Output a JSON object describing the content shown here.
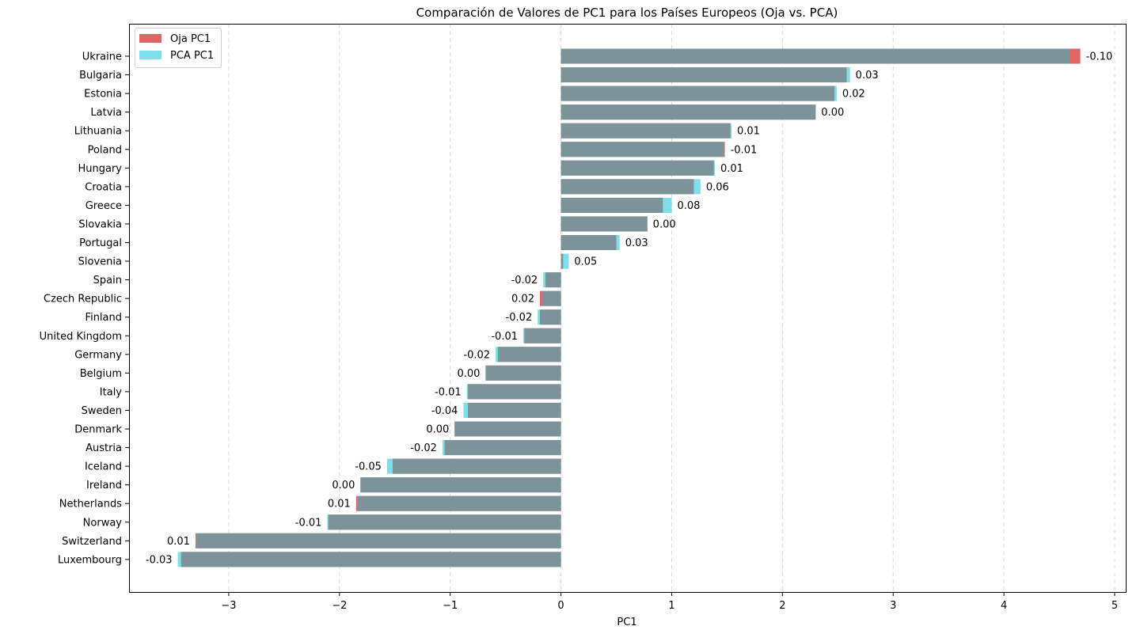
{
  "chart_data": {
    "type": "bar",
    "orientation": "horizontal",
    "title": "Comparación de Valores de PC1 para los Países Europeos (Oja vs. PCA)",
    "xlabel": "PC1",
    "ylabel": "",
    "xlim": [
      -3.9,
      5.1
    ],
    "xticks": [
      -3,
      -2,
      -1,
      0,
      1,
      2,
      3,
      4,
      5
    ],
    "xtick_labels": [
      "−3",
      "−2",
      "−1",
      "0",
      "1",
      "2",
      "3",
      "4",
      "5"
    ],
    "grid": "x-dashed",
    "legend_position": "top-left",
    "legend": [
      {
        "key": "oja",
        "label": "Oja PC1",
        "color": "#e06666"
      },
      {
        "key": "pca",
        "label": "PCA PC1",
        "color": "#80deea"
      }
    ],
    "overlap_color": "#7b9399",
    "categories": [
      "Ukraine",
      "Bulgaria",
      "Estonia",
      "Latvia",
      "Lithuania",
      "Poland",
      "Hungary",
      "Croatia",
      "Greece",
      "Slovakia",
      "Portugal",
      "Slovenia",
      "Spain",
      "Czech Republic",
      "Finland",
      "United Kingdom",
      "Germany",
      "Belgium",
      "Italy",
      "Sweden",
      "Denmark",
      "Austria",
      "Iceland",
      "Ireland",
      "Netherlands",
      "Norway",
      "Switzerland",
      "Luxembourg"
    ],
    "series": [
      {
        "name": "Oja PC1",
        "values": [
          4.69,
          2.58,
          2.47,
          2.3,
          1.53,
          1.48,
          1.38,
          1.2,
          0.92,
          0.78,
          0.5,
          0.02,
          -0.14,
          -0.19,
          -0.19,
          -0.33,
          -0.57,
          -0.68,
          -0.84,
          -0.84,
          -0.96,
          -1.05,
          -1.52,
          -1.81,
          -1.85,
          -2.1,
          -3.3,
          -3.43
        ]
      },
      {
        "name": "PCA PC1",
        "values": [
          4.59,
          2.61,
          2.49,
          2.3,
          1.54,
          1.47,
          1.39,
          1.26,
          1.0,
          0.78,
          0.53,
          0.07,
          -0.16,
          -0.17,
          -0.21,
          -0.34,
          -0.59,
          -0.68,
          -0.85,
          -0.88,
          -0.96,
          -1.07,
          -1.57,
          -1.81,
          -1.84,
          -2.11,
          -3.29,
          -3.46
        ]
      }
    ],
    "difference_labels": [
      "-0.10",
      "0.03",
      "0.02",
      "0.00",
      "0.01",
      "-0.01",
      "0.01",
      "0.06",
      "0.08",
      "0.00",
      "0.03",
      "0.05",
      "-0.02",
      "0.02",
      "-0.02",
      "-0.01",
      "-0.02",
      "0.00",
      "-0.01",
      "-0.04",
      "0.00",
      "-0.02",
      "-0.05",
      "0.00",
      "0.01",
      "-0.01",
      "0.01",
      "-0.03"
    ]
  }
}
